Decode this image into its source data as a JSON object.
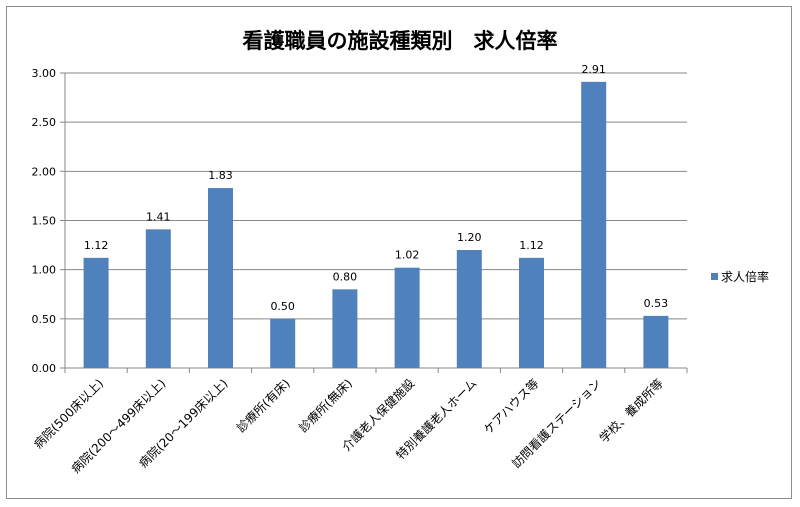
{
  "chart_data": {
    "type": "bar",
    "title": "看護職員の施設種類別　求人倍率",
    "categories": [
      "病院(500床以上)",
      "病院(200～499床以上)",
      "病院(20～199床以上)",
      "診療所(有床)",
      "診療所(無床)",
      "介護老人保健施設",
      "特別養護老人ホーム",
      "ケアハウス等",
      "訪問看護ステーション",
      "学校、養成所等"
    ],
    "series": [
      {
        "name": "求人倍率",
        "values": [
          1.12,
          1.41,
          1.83,
          0.5,
          0.8,
          1.02,
          1.2,
          1.12,
          2.91,
          0.53
        ]
      }
    ],
    "data_labels": [
      "1.12",
      "1.41",
      "1.83",
      "0.50",
      "0.80",
      "1.02",
      "1.20",
      "1.12",
      "2.91",
      "0.53"
    ],
    "y_ticks": [
      "0.00",
      "0.50",
      "1.00",
      "1.50",
      "2.00",
      "2.50",
      "3.00"
    ],
    "ylim": [
      0,
      3.0
    ],
    "grid": true,
    "legend_position": "right",
    "colors": {
      "bar": "#4F81BD",
      "grid": "#878787",
      "axis": "#878787"
    }
  }
}
